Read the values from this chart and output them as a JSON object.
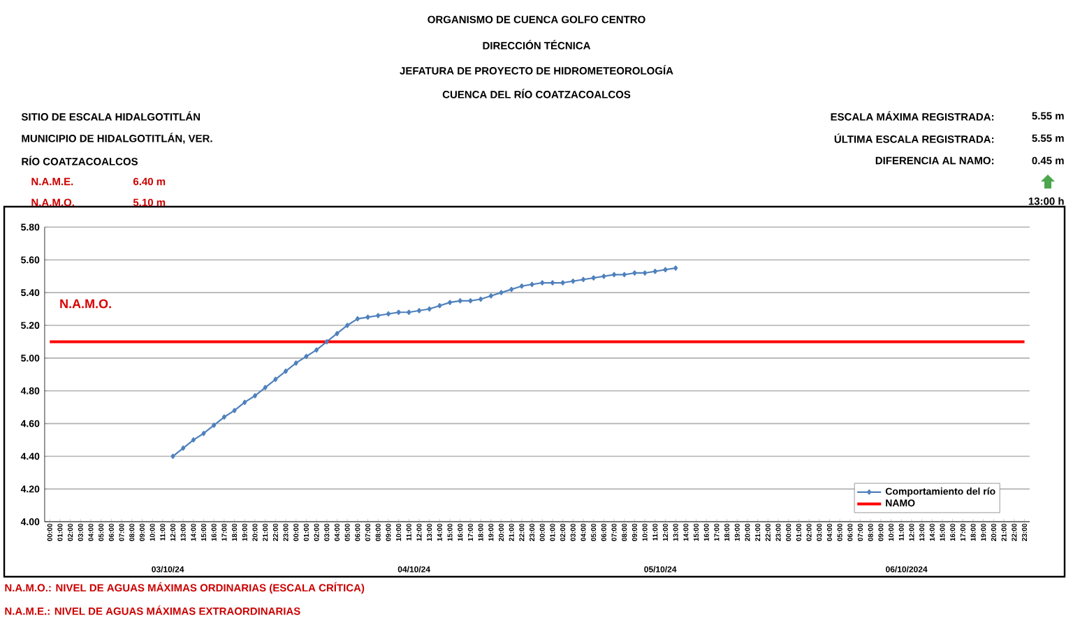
{
  "chart_data": {
    "type": "line",
    "title": "ORGANISMO DE CUENCA GOLFO CENTRO",
    "subtitle": "DIRECCIÓN TÉCNICA",
    "categories": [
      "00:00",
      "01:00",
      "02:00",
      "03:00",
      "04:00",
      "05:00",
      "06:00",
      "07:00",
      "08:00",
      "09:00",
      "10:00",
      "11:00",
      "12:00",
      "13:00",
      "14:00",
      "15:00",
      "16:00",
      "17:00",
      "18:00",
      "19:00",
      "20:00",
      "21:00",
      "22:00",
      "23:00",
      "00:00",
      "01:00",
      "02:00",
      "03:00",
      "04:00",
      "05:00",
      "06:00",
      "07:00",
      "08:00",
      "09:00",
      "10:00",
      "11:00",
      "12:00",
      "13:00",
      "14:00",
      "15:00",
      "16:00",
      "17:00",
      "18:00",
      "19:00",
      "20:00",
      "21:00",
      "22:00",
      "23:00",
      "00:00",
      "01:00",
      "02:00",
      "03:00",
      "04:00",
      "05:00",
      "06:00",
      "07:00",
      "08:00",
      "09:00",
      "10:00",
      "11:00",
      "12:00",
      "13:00",
      "14:00",
      "15:00",
      "16:00",
      "17:00",
      "18:00",
      "19:00",
      "20:00",
      "21:00",
      "22:00",
      "23:00",
      "00:00",
      "01:00",
      "02:00",
      "03:00",
      "04:00",
      "05:00",
      "06:00",
      "07:00",
      "08:00",
      "09:00",
      "10:00",
      "11:00",
      "12:00",
      "13:00",
      "14:00",
      "15:00",
      "16:00",
      "17:00",
      "18:00",
      "19:00",
      "20:00",
      "21:00",
      "22:00",
      "23:00"
    ],
    "series": [
      {
        "name": "Comportamiento del río",
        "color": "#4f81bd",
        "marker": "diamond",
        "values": [
          null,
          null,
          null,
          null,
          null,
          null,
          null,
          null,
          null,
          null,
          null,
          null,
          4.4,
          4.45,
          4.5,
          4.54,
          4.59,
          4.64,
          4.68,
          4.73,
          4.77,
          4.82,
          4.87,
          4.92,
          4.97,
          5.01,
          5.05,
          5.1,
          5.15,
          5.2,
          5.24,
          5.25,
          5.26,
          5.27,
          5.28,
          5.28,
          5.29,
          5.3,
          5.32,
          5.34,
          5.35,
          5.35,
          5.36,
          5.38,
          5.4,
          5.42,
          5.44,
          5.45,
          5.46,
          5.46,
          5.46,
          5.47,
          5.48,
          5.49,
          5.5,
          5.51,
          5.51,
          5.52,
          5.52,
          5.53,
          5.54,
          5.55,
          null,
          null,
          null,
          null,
          null,
          null,
          null,
          null,
          null,
          null,
          null,
          null,
          null,
          null,
          null,
          null,
          null,
          null,
          null,
          null,
          null,
          null,
          null,
          null,
          null,
          null,
          null,
          null,
          null,
          null,
          null,
          null,
          null,
          null
        ]
      },
      {
        "name": "NAMO",
        "color": "#ff0000",
        "marker": "none",
        "values": [
          5.1,
          5.1,
          5.1,
          5.1,
          5.1,
          5.1,
          5.1,
          5.1,
          5.1,
          5.1,
          5.1,
          5.1,
          5.1,
          5.1,
          5.1,
          5.1,
          5.1,
          5.1,
          5.1,
          5.1,
          5.1,
          5.1,
          5.1,
          5.1,
          5.1,
          5.1,
          5.1,
          5.1,
          5.1,
          5.1,
          5.1,
          5.1,
          5.1,
          5.1,
          5.1,
          5.1,
          5.1,
          5.1,
          5.1,
          5.1,
          5.1,
          5.1,
          5.1,
          5.1,
          5.1,
          5.1,
          5.1,
          5.1,
          5.1,
          5.1,
          5.1,
          5.1,
          5.1,
          5.1,
          5.1,
          5.1,
          5.1,
          5.1,
          5.1,
          5.1,
          5.1,
          5.1,
          5.1,
          5.1,
          5.1,
          5.1,
          5.1,
          5.1,
          5.1,
          5.1,
          5.1,
          5.1,
          5.1,
          5.1,
          5.1,
          5.1,
          5.1,
          5.1,
          5.1,
          5.1,
          5.1,
          5.1,
          5.1,
          5.1,
          5.1,
          5.1,
          5.1,
          5.1,
          5.1,
          5.1,
          5.1,
          5.1,
          5.1,
          5.1,
          5.1,
          5.1
        ]
      }
    ],
    "ylim": [
      4.0,
      5.8
    ],
    "yticks": [
      {
        "value": 4.0,
        "label": "4.00"
      },
      {
        "value": 4.2,
        "label": "4.20"
      },
      {
        "value": 4.4,
        "label": "4.40"
      },
      {
        "value": 4.6,
        "label": "4.60"
      },
      {
        "value": 4.8,
        "label": "4.80"
      },
      {
        "value": 5.0,
        "label": "5.00"
      },
      {
        "value": 5.2,
        "label": "5.20"
      },
      {
        "value": 5.4,
        "label": "5.40"
      },
      {
        "value": 5.6,
        "label": "5.60"
      },
      {
        "value": 5.8,
        "label": "5.80"
      }
    ],
    "grid": "y",
    "legend": "bottom right",
    "annotations": [
      "JEFATURA DE PROYECTO DE HIDROMETEOROLOGÍA",
      "CUENCA DEL RÍO COATZACOALCOS",
      "SITIO DE ESCALA HIDALGOTITLÁN",
      "MUNICIPIO DE HIDALGOTITLÁN, VER.",
      "RÍO COATZACOALCOS",
      "N.A.M.E.",
      "6.40 m",
      "N.A.M.O.",
      "5.10 m",
      "ESCALA MÁXIMA REGISTRADA:",
      "5.55 m",
      "ÚLTIMA ESCALA REGISTRADA:",
      "5.55 m",
      "DIFERENCIA AL NAMO:",
      "0.45 m",
      "13:00 h",
      "03/10/24",
      "04/10/24",
      "05/10/24",
      "06/10/2024",
      "N.A.M.O.: NIVEL DE AGUAS MÁXIMAS ORDINARIAS (ESCALA CRÍTICA)",
      "N.A.M.E.: NIVEL DE AGUAS MÁXIMAS EXTRAORDINARIAS",
      "N.A.M.O."
    ]
  }
}
